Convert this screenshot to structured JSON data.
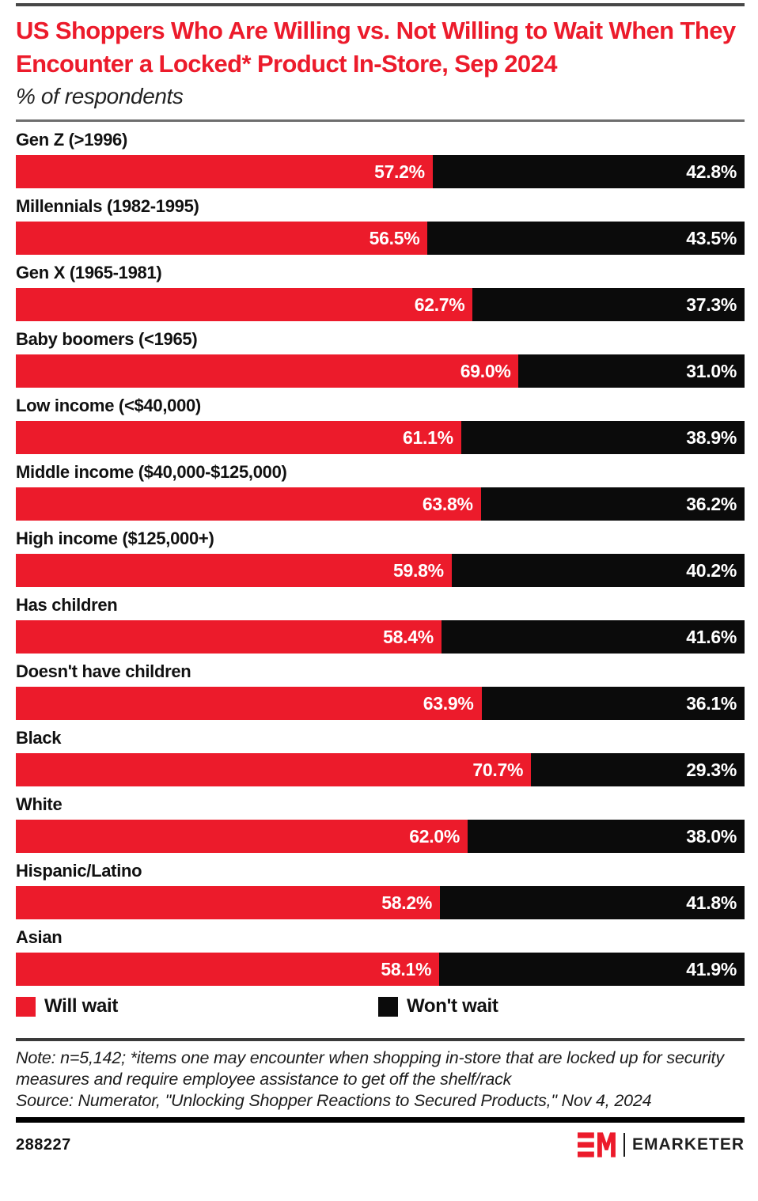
{
  "chart_data": {
    "type": "bar",
    "orientation": "horizontal-stacked",
    "title": "US Shoppers Who Are Willing vs. Not Willing to Wait When They Encounter a Locked* Product In-Store, Sep 2024",
    "subtitle": "% of respondents",
    "categories": [
      "Gen Z (>1996)",
      "Millennials (1982-1995)",
      "Gen X (1965-1981)",
      "Baby boomers (<1965)",
      "Low income (<$40,000)",
      "Middle income ($40,000-$125,000)",
      "High income ($125,000+)",
      "Has children",
      "Doesn't have children",
      "Black",
      "White",
      "Hispanic/Latino",
      "Asian"
    ],
    "series": [
      {
        "name": "Will wait",
        "color": "#EC1B2B",
        "values": [
          57.2,
          56.5,
          62.7,
          69.0,
          61.1,
          63.8,
          59.8,
          58.4,
          63.9,
          70.7,
          62.0,
          58.2,
          58.1
        ]
      },
      {
        "name": "Won't wait",
        "color": "#0B0B0B",
        "values": [
          42.8,
          43.5,
          37.3,
          31.0,
          38.9,
          36.2,
          40.2,
          41.6,
          36.1,
          29.3,
          38.0,
          41.8,
          41.9
        ]
      }
    ],
    "value_suffix": "%",
    "xlim": [
      0,
      100
    ],
    "grid": false,
    "legend_position": "bottom"
  },
  "footer": {
    "note": "Note: n=5,142; *items one may encounter when shopping in-store that are locked up for security measures and require employee assistance to get off the shelf/rack",
    "source": "Source: Numerator, \"Unlocking Shopper Reactions to Secured Products,\" Nov 4, 2024",
    "chart_id": "288227",
    "brand": "EMARKETER"
  },
  "colors": {
    "accent_red": "#EC1B2B",
    "bar_black": "#0B0B0B",
    "title_red": "#EC1B2B",
    "rule_gray": "#6e6e6e",
    "rule_dark": "#3a3a3a"
  }
}
